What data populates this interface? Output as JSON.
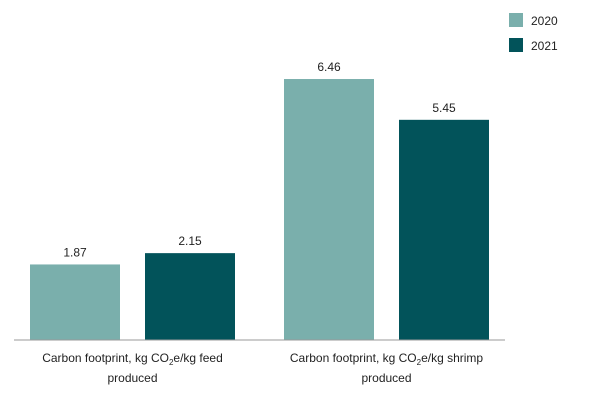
{
  "chart_data": {
    "type": "bar",
    "title": "",
    "xlabel": "",
    "ylabel": "",
    "ylim": [
      0,
      7
    ],
    "grid": false,
    "legend_position": "top-right",
    "categories": [
      {
        "line1_pre": "Carbon footprint, kg CO",
        "sub": "2",
        "line1_post": "e/kg feed",
        "line2": "produced"
      },
      {
        "line1_pre": "Carbon footprint, kg CO",
        "sub": "2",
        "line1_post": "e/kg shrimp",
        "line2": "produced"
      }
    ],
    "series": [
      {
        "name": "2020",
        "color": "#7aafac",
        "values": [
          1.87,
          6.46
        ],
        "labels": [
          "1.87",
          "6.46"
        ]
      },
      {
        "name": "2021",
        "color": "#02535a",
        "values": [
          2.15,
          5.45
        ],
        "labels": [
          "2.15",
          "5.45"
        ]
      }
    ]
  }
}
